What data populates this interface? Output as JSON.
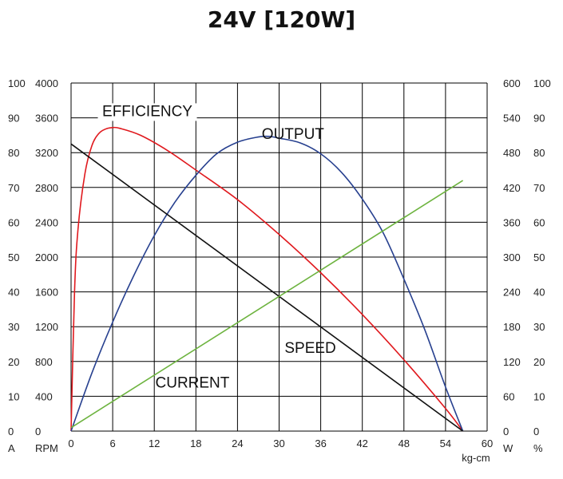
{
  "chart_data": {
    "type": "line",
    "title": "24V [120W]",
    "x_axis": {
      "label": "kg-cm",
      "range": [
        0,
        60
      ],
      "ticks": [
        "0",
        "6",
        "12",
        "18",
        "24",
        "30",
        "36",
        "42",
        "48",
        "54",
        "60"
      ]
    },
    "left_axes": [
      {
        "unit": "A",
        "ticks": [
          "0",
          "10",
          "20",
          "30",
          "40",
          "50",
          "60",
          "70",
          "80",
          "90",
          "100"
        ]
      },
      {
        "unit": "RPM",
        "ticks": [
          "0",
          "400",
          "800",
          "1200",
          "1600",
          "2000",
          "2400",
          "2800",
          "3200",
          "3600",
          "4000"
        ]
      }
    ],
    "right_axes": [
      {
        "unit": "W",
        "ticks": [
          "0",
          "60",
          "120",
          "180",
          "240",
          "300",
          "360",
          "420",
          "480",
          "540",
          "600"
        ]
      },
      {
        "unit": "%",
        "ticks": [
          "0",
          "10",
          "20",
          "30",
          "40",
          "50",
          "60",
          "70",
          "80",
          "90",
          "100"
        ]
      }
    ],
    "grid": true,
    "series": [
      {
        "name": "EFFICIENCY",
        "color": "#e0191e",
        "scale_max": 100,
        "points": [
          [
            0,
            0
          ],
          [
            0.5,
            40
          ],
          [
            1,
            58
          ],
          [
            2,
            74
          ],
          [
            3,
            82
          ],
          [
            4,
            85.5
          ],
          [
            5,
            86.8
          ],
          [
            6,
            87.2
          ],
          [
            7,
            87
          ],
          [
            10,
            85
          ],
          [
            14,
            80.5
          ],
          [
            18,
            75
          ],
          [
            24,
            66.5
          ],
          [
            30,
            56.5
          ],
          [
            36,
            45.5
          ],
          [
            42,
            33.5
          ],
          [
            48,
            20.5
          ],
          [
            54,
            6.5
          ],
          [
            56.5,
            0
          ]
        ]
      },
      {
        "name": "OUTPUT",
        "color": "#27408f",
        "scale_max": 600,
        "points": [
          [
            0,
            0
          ],
          [
            3,
            100
          ],
          [
            6,
            188
          ],
          [
            9,
            267
          ],
          [
            12,
            337
          ],
          [
            15,
            395
          ],
          [
            18,
            441
          ],
          [
            21,
            478
          ],
          [
            24,
            498
          ],
          [
            27,
            507
          ],
          [
            28.5,
            508
          ],
          [
            30,
            505
          ],
          [
            33,
            497
          ],
          [
            36,
            478
          ],
          [
            39,
            446
          ],
          [
            42,
            400
          ],
          [
            45,
            342
          ],
          [
            48,
            262
          ],
          [
            51,
            175
          ],
          [
            54,
            76
          ],
          [
            56.5,
            0
          ]
        ]
      },
      {
        "name": "SPEED",
        "color": "#111111",
        "scale_max": 4000,
        "points": [
          [
            0,
            3300
          ],
          [
            56.5,
            0
          ]
        ]
      },
      {
        "name": "CURRENT",
        "color": "#6db33f",
        "scale_max": 100,
        "points": [
          [
            0,
            1
          ],
          [
            56.5,
            72
          ]
        ]
      }
    ]
  }
}
